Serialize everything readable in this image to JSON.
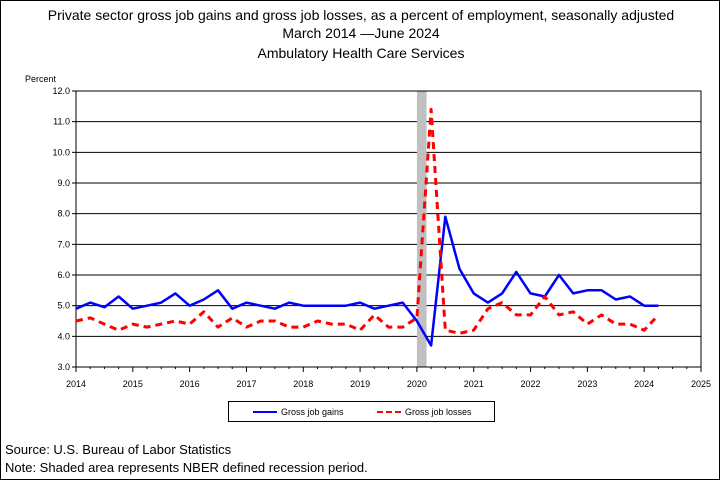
{
  "chart_data": {
    "type": "line",
    "title": "Private sector gross job gains and gross job losses, as a percent of employment, seasonally adjusted",
    "subtitle": "March 2014 —June 2024",
    "industry": "Ambulatory Health Care Services",
    "ylabel": "Percent",
    "xlabel": "",
    "ylim": [
      3.0,
      12.0
    ],
    "xlim": [
      2014,
      2025
    ],
    "y_ticks": [
      "3.0",
      "4.0",
      "5.0",
      "6.0",
      "7.0",
      "8.0",
      "9.0",
      "10.0",
      "11.0",
      "12.0"
    ],
    "x_ticks": [
      "2014",
      "2015",
      "2016",
      "2017",
      "2018",
      "2019",
      "2020",
      "2021",
      "2022",
      "2023",
      "2024",
      "2025"
    ],
    "grid": "horizontal",
    "legend_position": "bottom",
    "recession": {
      "start": 2020.0,
      "end": 2020.17,
      "color": "#c0c0c0"
    },
    "x": [
      2014.0,
      2014.25,
      2014.5,
      2014.75,
      2015.0,
      2015.25,
      2015.5,
      2015.75,
      2016.0,
      2016.25,
      2016.5,
      2016.75,
      2017.0,
      2017.25,
      2017.5,
      2017.75,
      2018.0,
      2018.25,
      2018.5,
      2018.75,
      2019.0,
      2019.25,
      2019.5,
      2019.75,
      2020.0,
      2020.25,
      2020.5,
      2020.75,
      2021.0,
      2021.25,
      2021.5,
      2021.75,
      2022.0,
      2022.25,
      2022.5,
      2022.75,
      2023.0,
      2023.25,
      2023.5,
      2023.75,
      2024.0,
      2024.25
    ],
    "series": [
      {
        "name": "Gross job gains",
        "color": "#0000ff",
        "style": "solid",
        "values": [
          4.9,
          5.1,
          4.95,
          5.3,
          4.9,
          5.0,
          5.1,
          5.4,
          5.0,
          5.2,
          5.5,
          4.9,
          5.1,
          5.0,
          4.9,
          5.1,
          5.0,
          5.0,
          5.0,
          5.0,
          5.1,
          4.9,
          5.0,
          5.1,
          4.5,
          3.7,
          7.9,
          6.2,
          5.4,
          5.1,
          5.4,
          6.1,
          5.4,
          5.3,
          6.0,
          5.4,
          5.5,
          5.5,
          5.2,
          5.3,
          5.0,
          5.0
        ]
      },
      {
        "name": "Gross job losses",
        "color": "#ff0000",
        "style": "dashed",
        "values": [
          4.5,
          4.6,
          4.4,
          4.2,
          4.4,
          4.3,
          4.4,
          4.5,
          4.4,
          4.8,
          4.3,
          4.6,
          4.3,
          4.5,
          4.5,
          4.3,
          4.3,
          4.5,
          4.4,
          4.4,
          4.2,
          4.7,
          4.3,
          4.3,
          4.6,
          11.4,
          4.2,
          4.1,
          4.2,
          4.9,
          5.1,
          4.7,
          4.7,
          5.3,
          4.7,
          4.8,
          4.4,
          4.7,
          4.4,
          4.4,
          4.2,
          4.7
        ]
      }
    ]
  },
  "footer": {
    "source": "Source: U.S. Bureau of Labor Statistics",
    "note": "Note: Shaded area represents NBER defined recession period."
  }
}
